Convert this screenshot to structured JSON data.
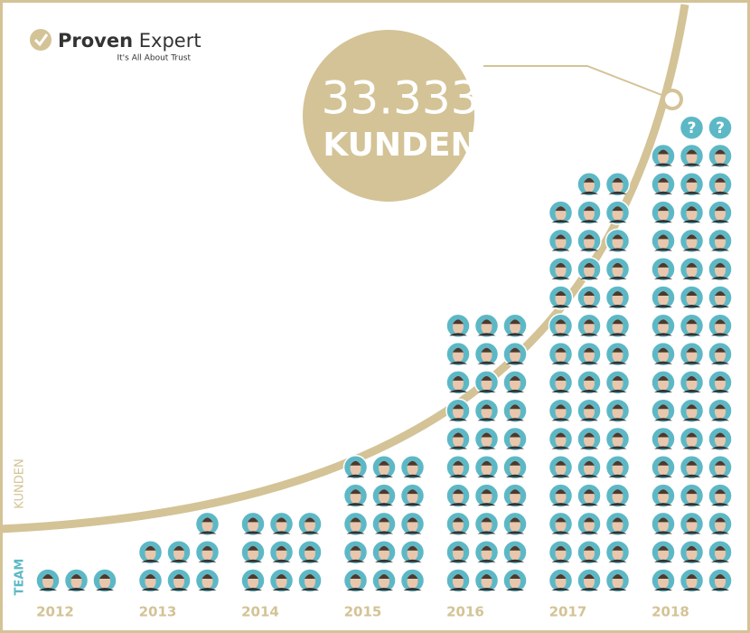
{
  "chart_data": {
    "type": "pictograph",
    "logo_bold": "Proven",
    "logo_light": "Expert",
    "tagline": "It's All About Trust",
    "headline_number": "33.333",
    "headline_unit": "KUNDEN",
    "curve_label": "KUNDEN",
    "team_label": "TEAM",
    "categories": [
      "2012",
      "2013",
      "2014",
      "2015",
      "2016",
      "2017",
      "2018"
    ],
    "values": [
      3,
      7,
      9,
      15,
      30,
      44,
      50
    ],
    "placeholders": [
      0,
      0,
      0,
      0,
      0,
      0,
      2
    ],
    "placeholder_label": "?",
    "color": "#5db8c6",
    "accent": "#d3c396"
  }
}
